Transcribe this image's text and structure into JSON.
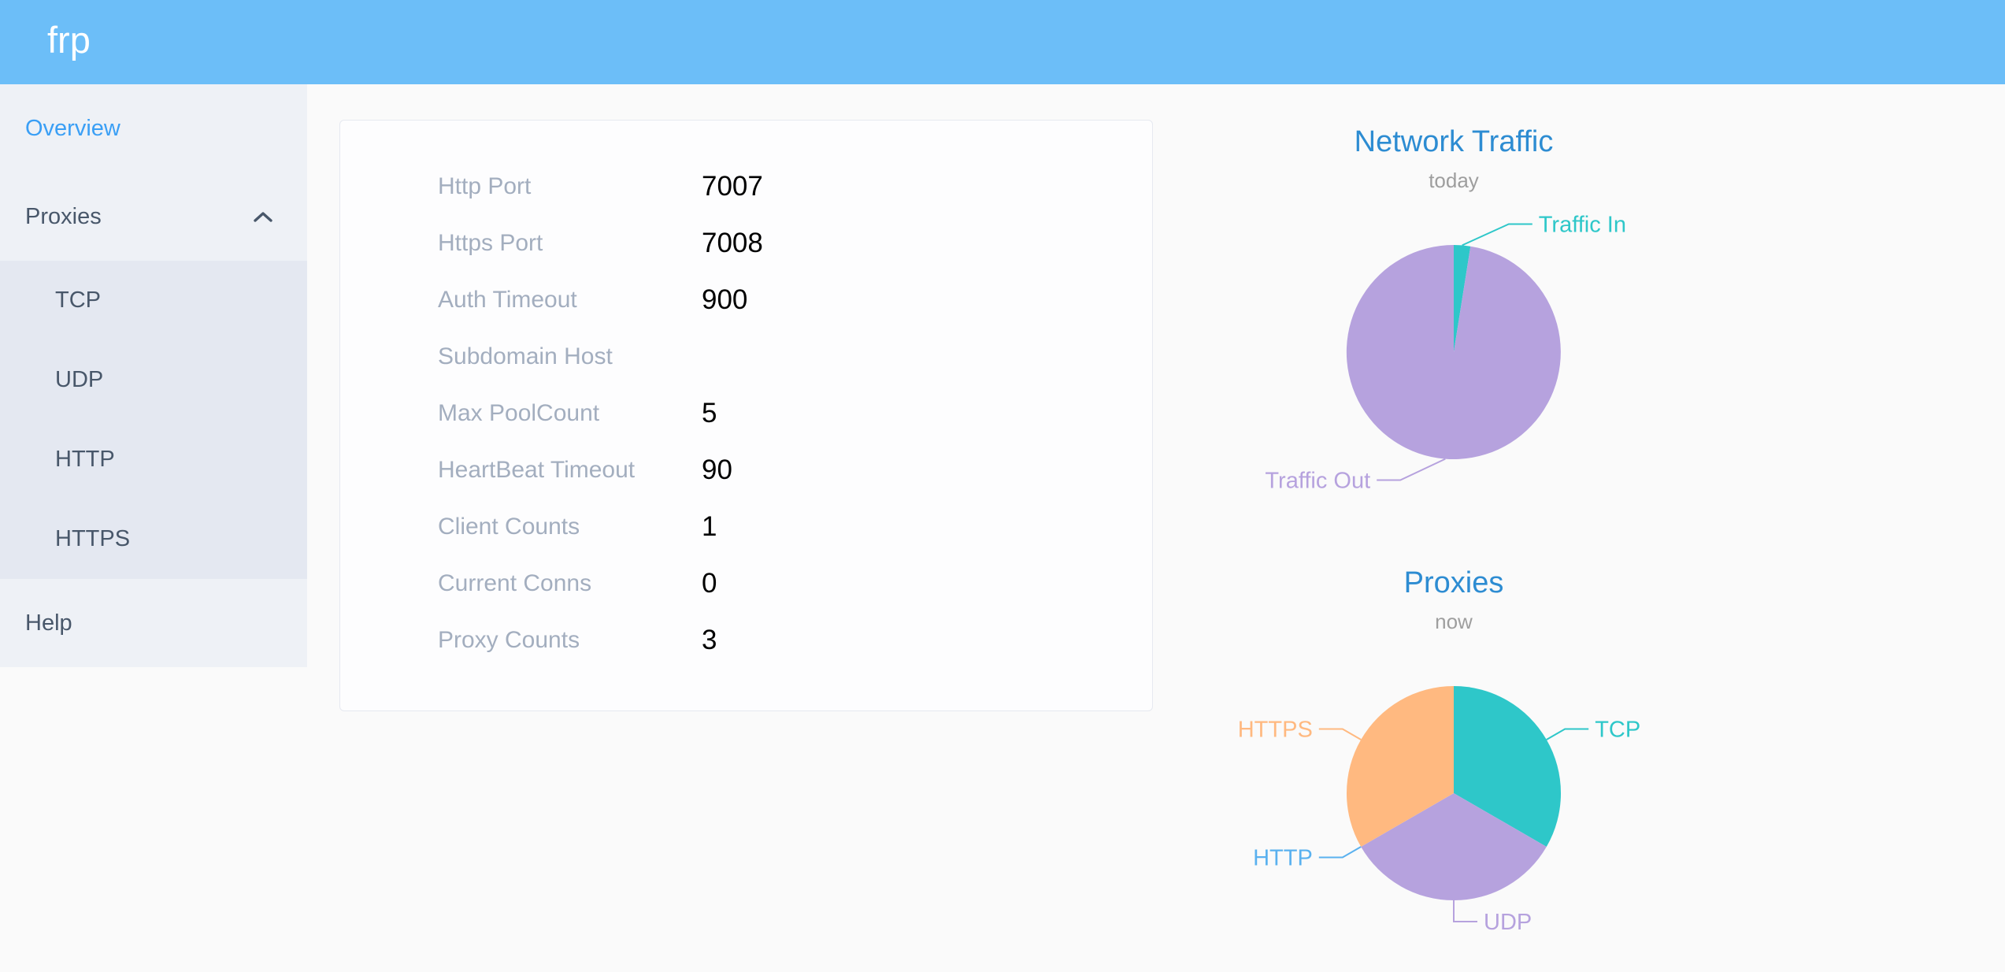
{
  "header": {
    "logo": "frp"
  },
  "sidebar": {
    "overview_label": "Overview",
    "proxies_label": "Proxies",
    "proxies_expanded": true,
    "proxy_children": [
      "TCP",
      "UDP",
      "HTTP",
      "HTTPS"
    ],
    "help_label": "Help"
  },
  "server_config": {
    "rows": [
      {
        "label": "Http Port",
        "value": "7007"
      },
      {
        "label": "Https Port",
        "value": "7008"
      },
      {
        "label": "Auth Timeout",
        "value": "900"
      },
      {
        "label": "Subdomain Host",
        "value": ""
      },
      {
        "label": "Max PoolCount",
        "value": "5"
      },
      {
        "label": "HeartBeat Timeout",
        "value": "90"
      },
      {
        "label": "Client Counts",
        "value": "1"
      },
      {
        "label": "Current Conns",
        "value": "0"
      },
      {
        "label": "Proxy Counts",
        "value": "3"
      }
    ]
  },
  "chart_data": [
    {
      "type": "pie",
      "title": "Network Traffic",
      "subtitle": "today",
      "legend_position": "none",
      "note": "values are percent of circle, estimated from slice angles (~9 deg teal slice)",
      "slices": [
        {
          "name": "Traffic In",
          "value": 2.5,
          "color": "#2ec7c9",
          "label_dx": 57
        },
        {
          "name": "Traffic Out",
          "value": 97.5,
          "color": "#b6a2de",
          "label_dx": -55
        }
      ]
    },
    {
      "type": "pie",
      "title": "Proxies",
      "subtitle": "now",
      "legend_position": "none",
      "note": "proxy counts by type; HTTP count is 0 (zero-width slice, label still shown)",
      "slices": [
        {
          "name": "TCP",
          "value": 1,
          "color": "#2ec7c9"
        },
        {
          "name": "UDP",
          "value": 1,
          "color": "#b6a2de"
        },
        {
          "name": "HTTP",
          "value": 0,
          "color": "#5ab1ef"
        },
        {
          "name": "HTTPS",
          "value": 1,
          "color": "#ffb980"
        }
      ]
    }
  ],
  "colors": {
    "header_bg": "#6cbef8",
    "sidebar_bg": "#eef1f6",
    "submenu_bg": "#e4e8f1",
    "sidebar_text": "#48576a",
    "sidebar_active": "#3a9ff5",
    "chart_title": "#2d8cd2",
    "config_label": "#a3aebf",
    "page_bg": "#fafafa"
  }
}
